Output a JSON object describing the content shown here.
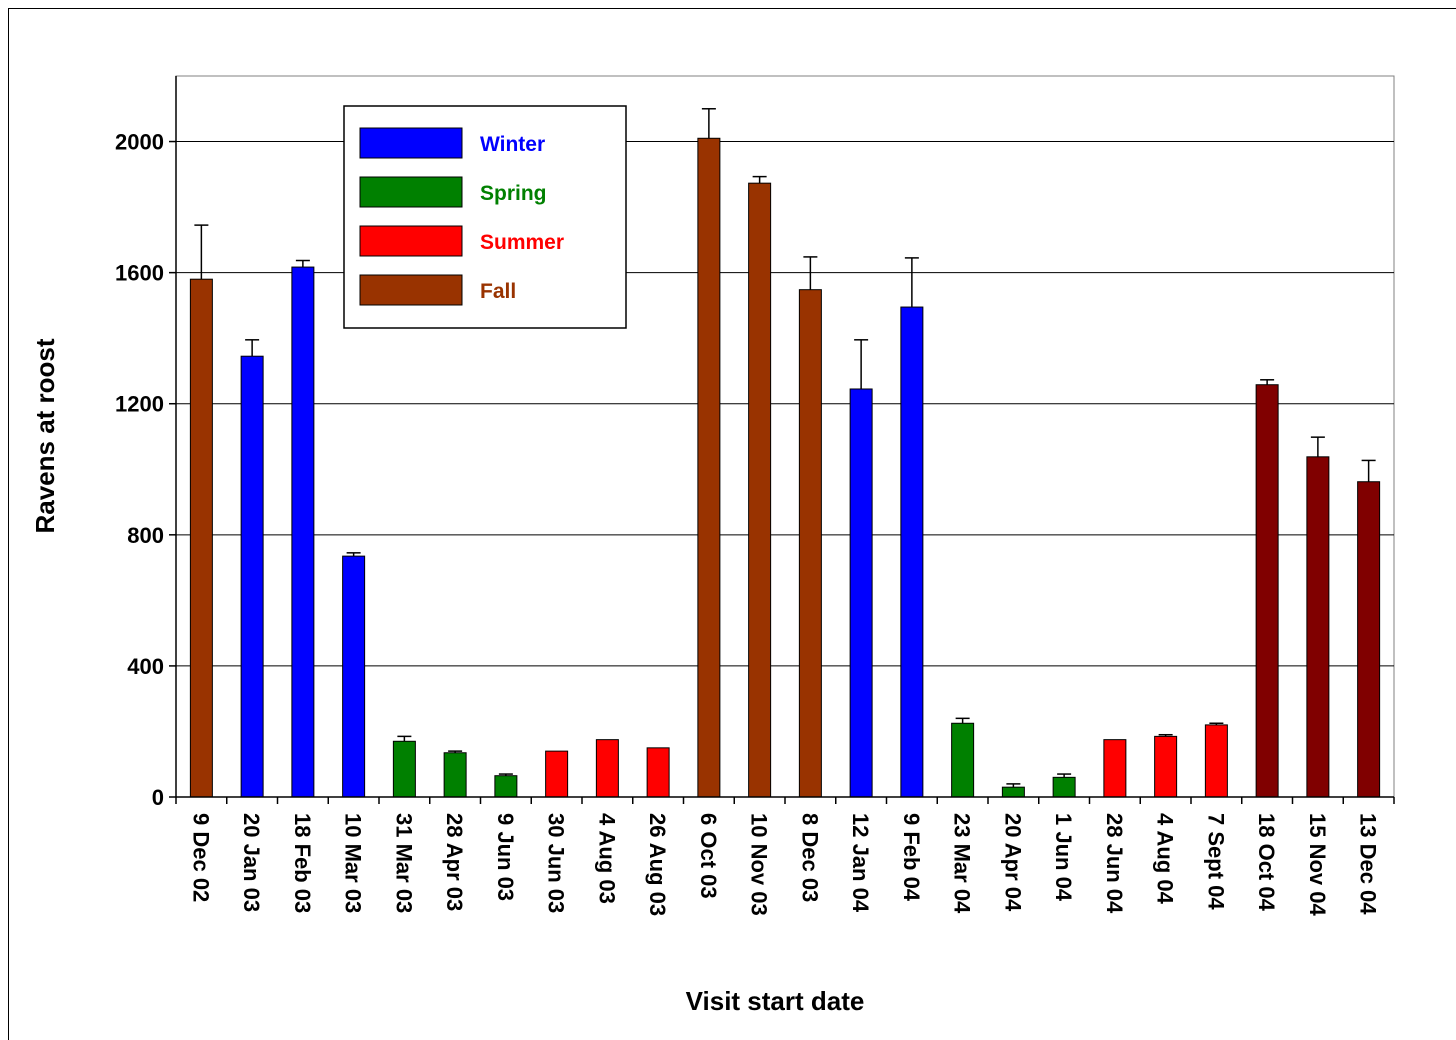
{
  "chart_data": {
    "type": "bar",
    "title": "",
    "xlabel": "Visit start date",
    "ylabel": "Ravens at roost",
    "ylim": [
      0,
      2200
    ],
    "yticks": [
      0,
      400,
      800,
      1200,
      1600,
      2000
    ],
    "grid": true,
    "legend_position": "top-left",
    "legend": [
      {
        "label": "Winter",
        "color": "#0000ff",
        "text_color": "#0000ff"
      },
      {
        "label": "Spring",
        "color": "#008000",
        "text_color": "#008000"
      },
      {
        "label": "Summer",
        "color": "#ff0000",
        "text_color": "#ff0000"
      },
      {
        "label": "Fall",
        "color": "#993300",
        "text_color": "#993300"
      }
    ],
    "categories": [
      "9 Dec 02",
      "20 Jan 03",
      "18 Feb 03",
      "10 Mar 03",
      "31 Mar 03",
      "28 Apr 03",
      "9 Jun 03",
      "30 Jun 03",
      "4 Aug 03",
      "26 Aug 03",
      "6 Oct 03",
      "10 Nov 03",
      "8 Dec 03",
      "12 Jan 04",
      "9 Feb 04",
      "23 Mar 04",
      "20 Apr 04",
      "1 Jun 04",
      "28 Jun 04",
      "4 Aug 04",
      "7 Sept 04",
      "18 Oct 04",
      "15 Nov 04",
      "13 Dec 04"
    ],
    "values": [
      1580,
      1345,
      1617,
      735,
      170,
      135,
      65,
      140,
      175,
      150,
      2010,
      1873,
      1548,
      1245,
      1495,
      225,
      30,
      60,
      175,
      185,
      220,
      1258,
      1038,
      962
    ],
    "errors": [
      165,
      50,
      20,
      10,
      15,
      5,
      5,
      0,
      0,
      0,
      90,
      20,
      100,
      150,
      150,
      15,
      10,
      10,
      0,
      5,
      5,
      15,
      60,
      65
    ],
    "colors": [
      "#993300",
      "#0000ff",
      "#0000ff",
      "#0000ff",
      "#008000",
      "#008000",
      "#008000",
      "#ff0000",
      "#ff0000",
      "#ff0000",
      "#993300",
      "#993300",
      "#993300",
      "#0000ff",
      "#0000ff",
      "#008000",
      "#008000",
      "#008000",
      "#ff0000",
      "#ff0000",
      "#ff0000",
      "#800000",
      "#800000",
      "#800000"
    ]
  }
}
